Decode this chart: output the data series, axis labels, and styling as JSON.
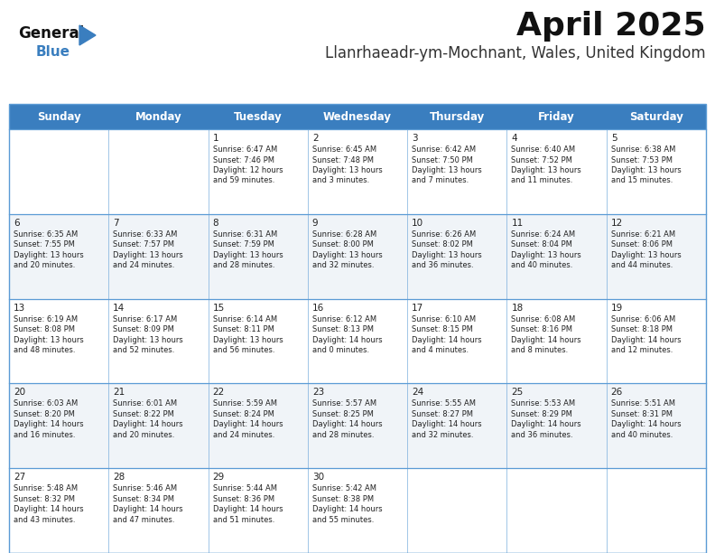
{
  "title": "April 2025",
  "subtitle": "Llanrhaeadr-ym-Mochnant, Wales, United Kingdom",
  "header_color": "#3a7ebf",
  "header_text_color": "#ffffff",
  "bg_color": "#ffffff",
  "alt_row_color": "#f0f4f8",
  "grid_line_color": "#5b9bd5",
  "text_color": "#222222",
  "day_headers": [
    "Sunday",
    "Monday",
    "Tuesday",
    "Wednesday",
    "Thursday",
    "Friday",
    "Saturday"
  ],
  "title_fontsize": 26,
  "subtitle_fontsize": 12,
  "header_fontsize": 8.5,
  "cell_date_fontsize": 7.5,
  "cell_fontsize": 6.0,
  "logo_general_fontsize": 12,
  "logo_blue_fontsize": 11,
  "days": [
    {
      "date": 1,
      "col": 2,
      "row": 0,
      "sunrise": "6:47 AM",
      "sunset": "7:46 PM",
      "daylight_line1": "Daylight: 12 hours",
      "daylight_line2": "and 59 minutes."
    },
    {
      "date": 2,
      "col": 3,
      "row": 0,
      "sunrise": "6:45 AM",
      "sunset": "7:48 PM",
      "daylight_line1": "Daylight: 13 hours",
      "daylight_line2": "and 3 minutes."
    },
    {
      "date": 3,
      "col": 4,
      "row": 0,
      "sunrise": "6:42 AM",
      "sunset": "7:50 PM",
      "daylight_line1": "Daylight: 13 hours",
      "daylight_line2": "and 7 minutes."
    },
    {
      "date": 4,
      "col": 5,
      "row": 0,
      "sunrise": "6:40 AM",
      "sunset": "7:52 PM",
      "daylight_line1": "Daylight: 13 hours",
      "daylight_line2": "and 11 minutes."
    },
    {
      "date": 5,
      "col": 6,
      "row": 0,
      "sunrise": "6:38 AM",
      "sunset": "7:53 PM",
      "daylight_line1": "Daylight: 13 hours",
      "daylight_line2": "and 15 minutes."
    },
    {
      "date": 6,
      "col": 0,
      "row": 1,
      "sunrise": "6:35 AM",
      "sunset": "7:55 PM",
      "daylight_line1": "Daylight: 13 hours",
      "daylight_line2": "and 20 minutes."
    },
    {
      "date": 7,
      "col": 1,
      "row": 1,
      "sunrise": "6:33 AM",
      "sunset": "7:57 PM",
      "daylight_line1": "Daylight: 13 hours",
      "daylight_line2": "and 24 minutes."
    },
    {
      "date": 8,
      "col": 2,
      "row": 1,
      "sunrise": "6:31 AM",
      "sunset": "7:59 PM",
      "daylight_line1": "Daylight: 13 hours",
      "daylight_line2": "and 28 minutes."
    },
    {
      "date": 9,
      "col": 3,
      "row": 1,
      "sunrise": "6:28 AM",
      "sunset": "8:00 PM",
      "daylight_line1": "Daylight: 13 hours",
      "daylight_line2": "and 32 minutes."
    },
    {
      "date": 10,
      "col": 4,
      "row": 1,
      "sunrise": "6:26 AM",
      "sunset": "8:02 PM",
      "daylight_line1": "Daylight: 13 hours",
      "daylight_line2": "and 36 minutes."
    },
    {
      "date": 11,
      "col": 5,
      "row": 1,
      "sunrise": "6:24 AM",
      "sunset": "8:04 PM",
      "daylight_line1": "Daylight: 13 hours",
      "daylight_line2": "and 40 minutes."
    },
    {
      "date": 12,
      "col": 6,
      "row": 1,
      "sunrise": "6:21 AM",
      "sunset": "8:06 PM",
      "daylight_line1": "Daylight: 13 hours",
      "daylight_line2": "and 44 minutes."
    },
    {
      "date": 13,
      "col": 0,
      "row": 2,
      "sunrise": "6:19 AM",
      "sunset": "8:08 PM",
      "daylight_line1": "Daylight: 13 hours",
      "daylight_line2": "and 48 minutes."
    },
    {
      "date": 14,
      "col": 1,
      "row": 2,
      "sunrise": "6:17 AM",
      "sunset": "8:09 PM",
      "daylight_line1": "Daylight: 13 hours",
      "daylight_line2": "and 52 minutes."
    },
    {
      "date": 15,
      "col": 2,
      "row": 2,
      "sunrise": "6:14 AM",
      "sunset": "8:11 PM",
      "daylight_line1": "Daylight: 13 hours",
      "daylight_line2": "and 56 minutes."
    },
    {
      "date": 16,
      "col": 3,
      "row": 2,
      "sunrise": "6:12 AM",
      "sunset": "8:13 PM",
      "daylight_line1": "Daylight: 14 hours",
      "daylight_line2": "and 0 minutes."
    },
    {
      "date": 17,
      "col": 4,
      "row": 2,
      "sunrise": "6:10 AM",
      "sunset": "8:15 PM",
      "daylight_line1": "Daylight: 14 hours",
      "daylight_line2": "and 4 minutes."
    },
    {
      "date": 18,
      "col": 5,
      "row": 2,
      "sunrise": "6:08 AM",
      "sunset": "8:16 PM",
      "daylight_line1": "Daylight: 14 hours",
      "daylight_line2": "and 8 minutes."
    },
    {
      "date": 19,
      "col": 6,
      "row": 2,
      "sunrise": "6:06 AM",
      "sunset": "8:18 PM",
      "daylight_line1": "Daylight: 14 hours",
      "daylight_line2": "and 12 minutes."
    },
    {
      "date": 20,
      "col": 0,
      "row": 3,
      "sunrise": "6:03 AM",
      "sunset": "8:20 PM",
      "daylight_line1": "Daylight: 14 hours",
      "daylight_line2": "and 16 minutes."
    },
    {
      "date": 21,
      "col": 1,
      "row": 3,
      "sunrise": "6:01 AM",
      "sunset": "8:22 PM",
      "daylight_line1": "Daylight: 14 hours",
      "daylight_line2": "and 20 minutes."
    },
    {
      "date": 22,
      "col": 2,
      "row": 3,
      "sunrise": "5:59 AM",
      "sunset": "8:24 PM",
      "daylight_line1": "Daylight: 14 hours",
      "daylight_line2": "and 24 minutes."
    },
    {
      "date": 23,
      "col": 3,
      "row": 3,
      "sunrise": "5:57 AM",
      "sunset": "8:25 PM",
      "daylight_line1": "Daylight: 14 hours",
      "daylight_line2": "and 28 minutes."
    },
    {
      "date": 24,
      "col": 4,
      "row": 3,
      "sunrise": "5:55 AM",
      "sunset": "8:27 PM",
      "daylight_line1": "Daylight: 14 hours",
      "daylight_line2": "and 32 minutes."
    },
    {
      "date": 25,
      "col": 5,
      "row": 3,
      "sunrise": "5:53 AM",
      "sunset": "8:29 PM",
      "daylight_line1": "Daylight: 14 hours",
      "daylight_line2": "and 36 minutes."
    },
    {
      "date": 26,
      "col": 6,
      "row": 3,
      "sunrise": "5:51 AM",
      "sunset": "8:31 PM",
      "daylight_line1": "Daylight: 14 hours",
      "daylight_line2": "and 40 minutes."
    },
    {
      "date": 27,
      "col": 0,
      "row": 4,
      "sunrise": "5:48 AM",
      "sunset": "8:32 PM",
      "daylight_line1": "Daylight: 14 hours",
      "daylight_line2": "and 43 minutes."
    },
    {
      "date": 28,
      "col": 1,
      "row": 4,
      "sunrise": "5:46 AM",
      "sunset": "8:34 PM",
      "daylight_line1": "Daylight: 14 hours",
      "daylight_line2": "and 47 minutes."
    },
    {
      "date": 29,
      "col": 2,
      "row": 4,
      "sunrise": "5:44 AM",
      "sunset": "8:36 PM",
      "daylight_line1": "Daylight: 14 hours",
      "daylight_line2": "and 51 minutes."
    },
    {
      "date": 30,
      "col": 3,
      "row": 4,
      "sunrise": "5:42 AM",
      "sunset": "8:38 PM",
      "daylight_line1": "Daylight: 14 hours",
      "daylight_line2": "and 55 minutes."
    }
  ]
}
